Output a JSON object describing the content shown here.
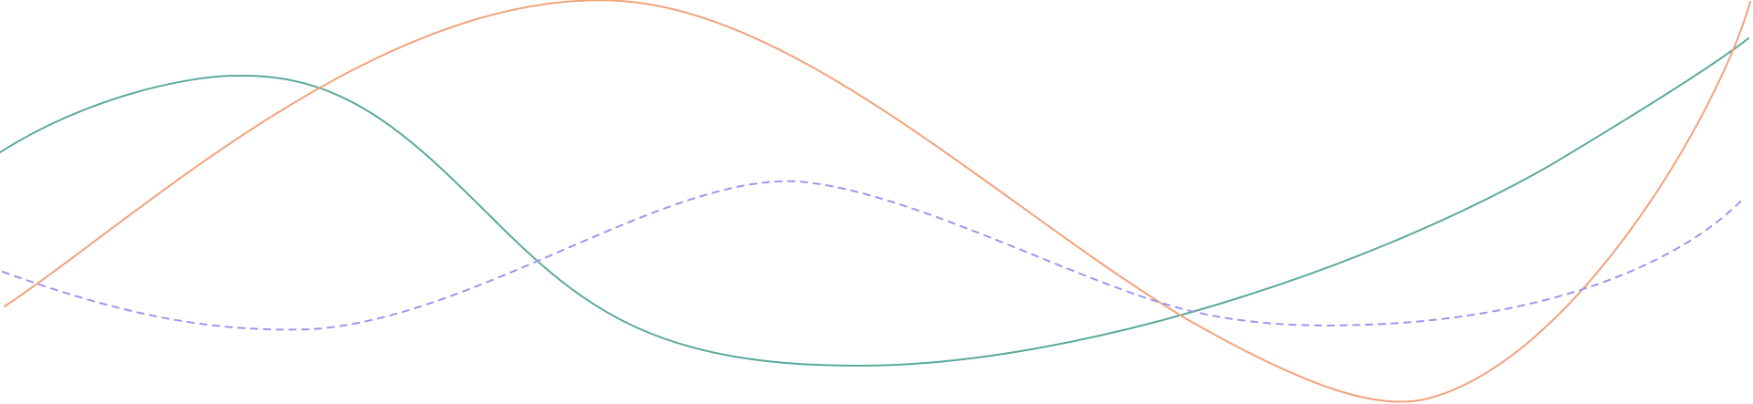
{
  "decoration": {
    "type": "decorative-wave-lines",
    "waves": [
      {
        "name": "teal-wave",
        "color": "#5aa99c",
        "style": "solid"
      },
      {
        "name": "orange-wave",
        "color": "#f2a27b",
        "style": "solid"
      },
      {
        "name": "purple-wave",
        "color": "#9b96f0",
        "style": "dashed"
      }
    ]
  }
}
